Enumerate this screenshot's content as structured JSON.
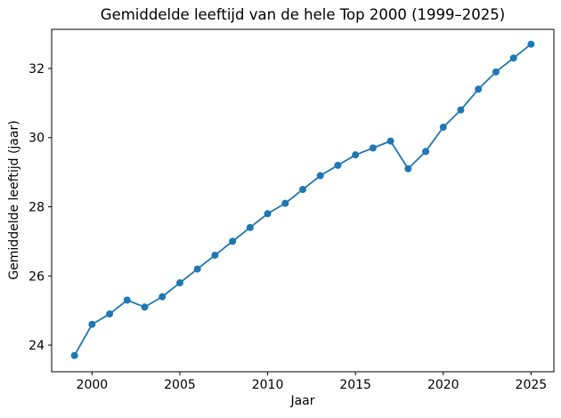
{
  "figure": {
    "background": "#ffffff",
    "spine_color": "#000000",
    "text_color": "#000000"
  },
  "chart_data": {
    "type": "line",
    "title": "Gemiddelde leeftijd van de hele Top 2000 (1999–2025)",
    "xlabel": "Jaar",
    "ylabel": "Gemiddelde leeftijd (jaar)",
    "x": [
      1999,
      2000,
      2001,
      2002,
      2003,
      2004,
      2005,
      2006,
      2007,
      2008,
      2009,
      2010,
      2011,
      2012,
      2013,
      2014,
      2015,
      2016,
      2017,
      2018,
      2019,
      2020,
      2021,
      2022,
      2023,
      2024,
      2025
    ],
    "series": [
      {
        "name": "Gemiddelde leeftijd",
        "values": [
          23.7,
          24.6,
          24.9,
          25.3,
          25.1,
          25.4,
          25.8,
          26.2,
          26.6,
          27.0,
          27.4,
          27.8,
          28.1,
          28.5,
          28.9,
          29.2,
          29.5,
          29.7,
          29.9,
          29.1,
          29.6,
          30.3,
          30.8,
          31.4,
          31.9,
          32.3,
          32.7
        ],
        "color": "#1f77b4",
        "marker": "circle"
      }
    ],
    "xlim": [
      1997.7,
      2026.3
    ],
    "ylim": [
      23.23,
      33.13
    ],
    "xticks": [
      2000,
      2005,
      2010,
      2015,
      2020,
      2025
    ],
    "yticks": [
      24,
      26,
      28,
      30,
      32
    ],
    "grid": false,
    "legend_position": "none"
  }
}
